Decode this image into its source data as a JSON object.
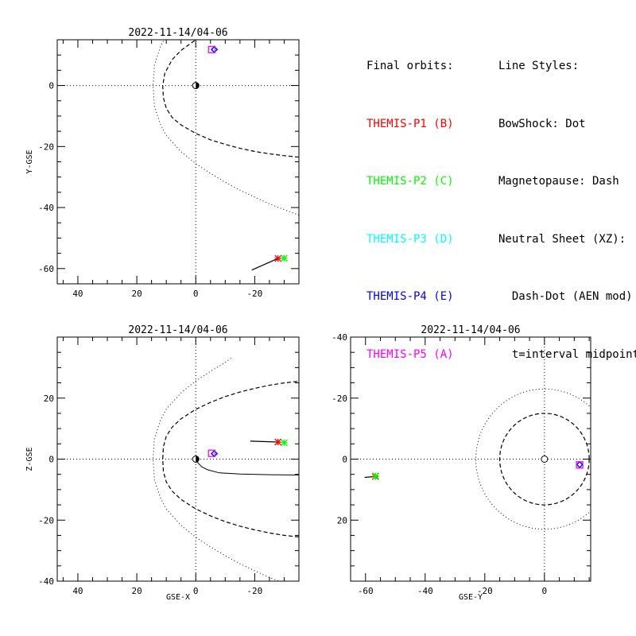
{
  "legend": {
    "orbits_header": "Final orbits:",
    "probes": [
      {
        "label": "THEMIS-P1 (B)",
        "color": "#ff0000"
      },
      {
        "label": "THEMIS-P2 (C)",
        "color": "#00ff00"
      },
      {
        "label": "THEMIS-P3 (D)",
        "color": "#00ffff"
      },
      {
        "label": "THEMIS-P4 (E)",
        "color": "#0000ff"
      },
      {
        "label": "THEMIS-P5 (A)",
        "color": "#ff00ff"
      }
    ],
    "styles_header": "Line Styles:",
    "styles": [
      "BowShock: Dot",
      "Magnetopause: Dash",
      "Neutral Sheet (XZ):",
      "  Dash-Dot (AEN mod)",
      "  t=interval midpoint"
    ]
  },
  "chart_data": [
    {
      "type": "line",
      "title": "2022-11-14/04-06",
      "xlabel": "",
      "ylabel": "Y-GSE",
      "xlim": [
        47,
        -35
      ],
      "ylim": [
        15,
        -65
      ],
      "xticks": [
        40,
        20,
        0,
        -20
      ],
      "yticks": [
        -60,
        -40,
        -20,
        0
      ],
      "earth": [
        0,
        0
      ],
      "bowshock": [
        [
          -35,
          -42.5
        ],
        [
          -30,
          -40.7
        ],
        [
          -25,
          -38.8
        ],
        [
          -20,
          -36.6
        ],
        [
          -15,
          -34.3
        ],
        [
          -10,
          -31.7
        ],
        [
          -5,
          -28.8
        ],
        [
          0,
          -25.6
        ],
        [
          5,
          -21.7
        ],
        [
          10,
          -16.4
        ],
        [
          12,
          -12.7
        ],
        [
          14,
          -6.8
        ],
        [
          14.5,
          0
        ],
        [
          14,
          6.8
        ],
        [
          12,
          12.7
        ],
        [
          10,
          16.4
        ]
      ],
      "magnetopause": [
        [
          -35,
          -23.5
        ],
        [
          -30,
          -23
        ],
        [
          -25,
          -22.4
        ],
        [
          -20,
          -21.6
        ],
        [
          -15,
          -20.6
        ],
        [
          -10,
          -19.3
        ],
        [
          -5,
          -17.8
        ],
        [
          0,
          -15.7
        ],
        [
          5,
          -12.9
        ],
        [
          8,
          -10.5
        ],
        [
          10,
          -7.5
        ],
        [
          11,
          -4
        ],
        [
          11.2,
          0
        ],
        [
          10.5,
          4
        ],
        [
          8,
          8.5
        ],
        [
          5,
          11.5
        ],
        [
          0,
          15
        ]
      ],
      "probes": [
        {
          "name": "THEMIS-P1 (B)",
          "x": -27.9,
          "y": -56.7,
          "track": [
            [
              -19,
              -60.5
            ],
            [
              -27.9,
              -56.7
            ]
          ]
        },
        {
          "name": "THEMIS-P2 (C)",
          "x": -30.0,
          "y": -56.6
        },
        {
          "name": "THEMIS-P3 (D)",
          "x": -6.3,
          "y": 11.8
        },
        {
          "name": "THEMIS-P4 (E)",
          "x": -6.3,
          "y": 11.8
        },
        {
          "name": "THEMIS-P5 (A)",
          "x": -5.4,
          "y": 11.8
        }
      ]
    },
    {
      "type": "line",
      "title": "2022-11-14/04-06",
      "xlabel": "GSE-X",
      "ylabel": "Z-GSE",
      "xlim": [
        47,
        -35
      ],
      "ylim": [
        40,
        -40
      ],
      "xticks": [
        40,
        20,
        0,
        -20
      ],
      "yticks": [
        20,
        0,
        -20,
        -40
      ],
      "earth": [
        0,
        0
      ],
      "bowshock": [
        [
          -35,
          -42.5
        ],
        [
          -30,
          -40.7
        ],
        [
          -25,
          -38.8
        ],
        [
          -20,
          -36.6
        ],
        [
          -15,
          -34.3
        ],
        [
          -10,
          -31.7
        ],
        [
          -5,
          -28.8
        ],
        [
          0,
          -25.6
        ],
        [
          5,
          -21.7
        ],
        [
          10,
          -16.4
        ],
        [
          12,
          -12.7
        ],
        [
          14,
          -6.8
        ],
        [
          14.5,
          0
        ],
        [
          14,
          6.8
        ],
        [
          12,
          12.7
        ],
        [
          10,
          16.4
        ],
        [
          5,
          21.7
        ],
        [
          0,
          25.6
        ],
        [
          -5,
          28.8
        ],
        [
          -10,
          31.7
        ],
        [
          -12.5,
          33.5
        ]
      ],
      "magnetopause": [
        [
          -35,
          -25.5
        ],
        [
          -30,
          -25
        ],
        [
          -25,
          -24.2
        ],
        [
          -20,
          -23.2
        ],
        [
          -15,
          -22
        ],
        [
          -10,
          -20.5
        ],
        [
          -5,
          -18.6
        ],
        [
          0,
          -16.3
        ],
        [
          5,
          -13.2
        ],
        [
          8,
          -10.5
        ],
        [
          10,
          -7.5
        ],
        [
          11,
          -4
        ],
        [
          11.2,
          0
        ],
        [
          11,
          4
        ],
        [
          10,
          7.5
        ],
        [
          8,
          10.5
        ],
        [
          5,
          13.2
        ],
        [
          0,
          16.3
        ],
        [
          -5,
          18.6
        ],
        [
          -10,
          20.5
        ],
        [
          -15,
          22
        ],
        [
          -20,
          23.2
        ],
        [
          -25,
          24.2
        ],
        [
          -30,
          25
        ],
        [
          -35,
          25.5
        ]
      ],
      "neutral_sheet": [
        [
          0,
          -0.3
        ],
        [
          1,
          -1.5
        ],
        [
          2,
          -2.5
        ],
        [
          4,
          -3.5
        ],
        [
          8,
          -4.5
        ],
        [
          15,
          -4.9
        ],
        [
          25,
          -5.1
        ],
        [
          35,
          -5.2
        ]
      ],
      "neutral_sheet_x_sign": -1,
      "probes": [
        {
          "name": "THEMIS-P1 (B)",
          "x": -27.9,
          "y": 5.6,
          "track": [
            [
              -18.5,
              5.9
            ],
            [
              -27.9,
              5.6
            ]
          ]
        },
        {
          "name": "THEMIS-P2 (C)",
          "x": -30.0,
          "y": 5.4
        },
        {
          "name": "THEMIS-P3 (D)",
          "x": -6.3,
          "y": 1.8
        },
        {
          "name": "THEMIS-P4 (E)",
          "x": -6.3,
          "y": 1.8
        },
        {
          "name": "THEMIS-P5 (A)",
          "x": -5.4,
          "y": 1.9
        }
      ]
    },
    {
      "type": "line",
      "title": "2022-11-14/04-06",
      "xlabel": "GSE-Y",
      "ylabel": "",
      "xlim": [
        -65,
        15.5
      ],
      "ylim": [
        -40,
        40
      ],
      "xticks": [
        -60,
        -40,
        -20,
        0
      ],
      "yticks": [
        20,
        0,
        -20,
        -40
      ],
      "earth": [
        0,
        0
      ],
      "bowshock_circle_radius": 23,
      "magnetopause_circle_radius": 15,
      "probes": [
        {
          "name": "THEMIS-P1 (B)",
          "x": -56.7,
          "y": 5.7,
          "track": [
            [
              -60.3,
              6.0
            ],
            [
              -56.7,
              5.7
            ]
          ]
        },
        {
          "name": "THEMIS-P2 (C)",
          "x": -56.6,
          "y": 5.5
        },
        {
          "name": "THEMIS-P3 (D)",
          "x": 11.8,
          "y": 1.8
        },
        {
          "name": "THEMIS-P4 (E)",
          "x": 11.8,
          "y": 1.8
        },
        {
          "name": "THEMIS-P5 (A)",
          "x": 11.8,
          "y": 1.9
        }
      ]
    }
  ]
}
